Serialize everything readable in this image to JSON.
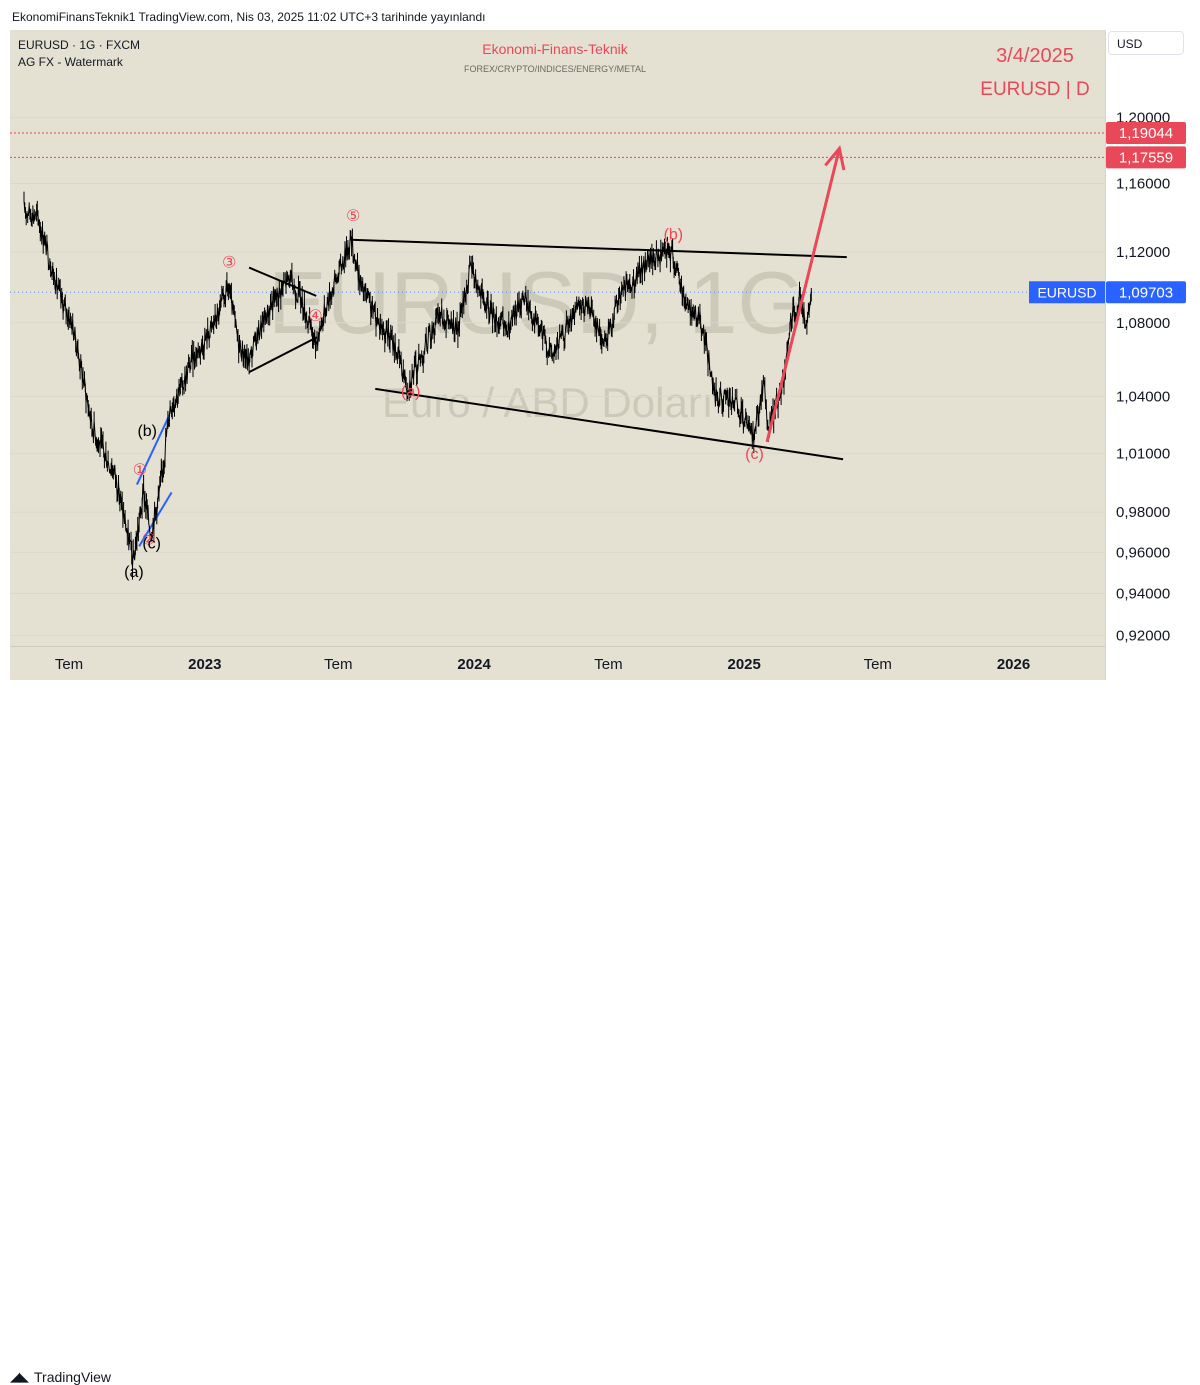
{
  "header": {
    "caption": "EkonomiFinansTeknik1 TradingView.com, Nis 03, 2025 11:02 UTC+3 tarihinde yayınlandı"
  },
  "symbol": {
    "line1": "EURUSD · 1G · FXCM",
    "line2": "AG FX - Watermark"
  },
  "brand": {
    "title": "Ekonomi-Finans-Teknik",
    "subtitle": "FOREX/CRYPTO/INDICES/ENERGY/METAL"
  },
  "annotation": {
    "date": "3/4/2025",
    "pair": "EURUSD | D"
  },
  "watermark": {
    "main": "EURUSD, 1G",
    "sub": "Euro / ABD Doları"
  },
  "currency_button": "USD",
  "footer": {
    "brand": "TradingView"
  },
  "colors": {
    "background": "#e4e1d3",
    "accent_red": "#e84857",
    "price_tag": "#2962ff",
    "blue_lines": "#2962ff"
  },
  "chart_data": {
    "type": "line",
    "series": [
      {
        "name": "EURUSD",
        "points": [
          [
            "2022-05-01",
            1.145
          ],
          [
            "2022-05-20",
            1.14
          ],
          [
            "2022-06-05",
            1.115
          ],
          [
            "2022-06-20",
            1.093
          ],
          [
            "2022-07-05",
            1.08
          ],
          [
            "2022-07-15",
            1.06
          ],
          [
            "2022-08-01",
            1.025
          ],
          [
            "2022-08-15",
            1.012
          ],
          [
            "2022-09-01",
            1.0
          ],
          [
            "2022-09-15",
            0.975
          ],
          [
            "2022-09-26",
            0.955
          ],
          [
            "2022-10-10",
            0.99
          ],
          [
            "2022-10-20",
            0.97
          ],
          [
            "2022-11-01",
            0.99
          ],
          [
            "2022-11-15",
            1.035
          ],
          [
            "2022-12-01",
            1.045
          ],
          [
            "2022-12-15",
            1.06
          ],
          [
            "2023-01-01",
            1.07
          ],
          [
            "2023-01-20",
            1.085
          ],
          [
            "2023-02-02",
            1.1
          ],
          [
            "2023-02-15",
            1.07
          ],
          [
            "2023-03-01",
            1.058
          ],
          [
            "2023-03-15",
            1.075
          ],
          [
            "2023-04-01",
            1.09
          ],
          [
            "2023-04-25",
            1.105
          ],
          [
            "2023-05-10",
            1.095
          ],
          [
            "2023-05-31",
            1.068
          ],
          [
            "2023-06-15",
            1.09
          ],
          [
            "2023-07-18",
            1.127
          ],
          [
            "2023-08-01",
            1.1
          ],
          [
            "2023-08-25",
            1.08
          ],
          [
            "2023-09-15",
            1.068
          ],
          [
            "2023-10-03",
            1.046
          ],
          [
            "2023-10-20",
            1.06
          ],
          [
            "2023-11-15",
            1.085
          ],
          [
            "2023-12-10",
            1.075
          ],
          [
            "2023-12-28",
            1.112
          ],
          [
            "2024-01-15",
            1.09
          ],
          [
            "2024-02-15",
            1.075
          ],
          [
            "2024-03-08",
            1.095
          ],
          [
            "2024-04-16",
            1.062
          ],
          [
            "2024-05-15",
            1.085
          ],
          [
            "2024-06-05",
            1.09
          ],
          [
            "2024-06-26",
            1.068
          ],
          [
            "2024-07-17",
            1.095
          ],
          [
            "2024-08-24",
            1.115
          ],
          [
            "2024-09-25",
            1.12
          ],
          [
            "2024-10-15",
            1.09
          ],
          [
            "2024-11-05",
            1.08
          ],
          [
            "2024-11-22",
            1.04
          ],
          [
            "2024-12-20",
            1.035
          ],
          [
            "2025-01-13",
            1.018
          ],
          [
            "2025-01-27",
            1.047
          ],
          [
            "2025-02-03",
            1.023
          ],
          [
            "2025-02-25",
            1.05
          ],
          [
            "2025-03-05",
            1.08
          ],
          [
            "2025-03-18",
            1.094
          ],
          [
            "2025-03-27",
            1.077
          ],
          [
            "2025-04-03",
            1.097
          ]
        ]
      }
    ],
    "x_ticks": [
      "Tem",
      "2023",
      "Tem",
      "2024",
      "Tem",
      "2025",
      "Tem",
      "2026"
    ],
    "y_ticks": [
      "1,20000",
      "1,16000",
      "1,12000",
      "1,08000",
      "1,04000",
      "1,01000",
      "0,98000",
      "0,96000",
      "0,94000",
      "0,92000"
    ],
    "y_scale": "log",
    "ylim": [
      0.915,
      1.255
    ],
    "xlim": [
      "2022-04-12",
      "2026-05-05"
    ],
    "last_price": {
      "label": "EURUSD",
      "value": "1,09703",
      "y": 1.09703
    },
    "levels": [
      {
        "value": "1,19044",
        "y": 1.19044
      },
      {
        "value": "1,17559",
        "y": 1.17559
      }
    ],
    "trend_lines": [
      {
        "name": "upper-channel",
        "from": [
          "2023-07-18",
          1.127
        ],
        "to": [
          "2025-05-20",
          1.117
        ]
      },
      {
        "name": "lower-channel",
        "from": [
          "2023-08-20",
          1.044
        ],
        "to": [
          "2025-05-15",
          1.007
        ]
      },
      {
        "name": "triangle-top",
        "from": [
          "2023-03-02",
          1.111
        ],
        "to": [
          "2023-06-01",
          1.095
        ]
      },
      {
        "name": "triangle-bottom",
        "from": [
          "2023-03-02",
          1.053
        ],
        "to": [
          "2023-06-02",
          1.072
        ]
      }
    ],
    "blue_lines": [
      {
        "name": "channel-a",
        "from": [
          "2022-10-01",
          0.994
        ],
        "to": [
          "2022-11-14",
          1.03
        ]
      },
      {
        "name": "channel-b",
        "from": [
          "2022-10-04",
          0.963
        ],
        "to": [
          "2022-11-17",
          0.99
        ]
      }
    ],
    "arrow": {
      "from": [
        "2025-02-01",
        1.016
      ],
      "to": [
        "2025-05-10",
        1.181
      ]
    },
    "wave_labels": [
      {
        "text": "①",
        "x": "2022-10-05",
        "y": 0.999,
        "color": "red"
      },
      {
        "text": "②",
        "x": "2022-10-17",
        "y": 0.964,
        "color": "red"
      },
      {
        "text": "③",
        "x": "2023-02-03",
        "y": 1.111,
        "color": "red"
      },
      {
        "text": "④",
        "x": "2023-05-31",
        "y": 1.081,
        "color": "red"
      },
      {
        "text": "⑤",
        "x": "2023-07-21",
        "y": 1.138,
        "color": "red"
      },
      {
        "text": "(a)",
        "x": "2022-09-27",
        "y": 0.948,
        "color": "black"
      },
      {
        "text": "(b)",
        "x": "2022-10-15",
        "y": 1.019,
        "color": "black"
      },
      {
        "text": "(c)",
        "x": "2022-10-21",
        "y": 0.962,
        "color": "black"
      },
      {
        "text": "(a)",
        "x": "2023-10-07",
        "y": 1.04,
        "color": "red"
      },
      {
        "text": "(b)",
        "x": "2024-09-27",
        "y": 1.127,
        "color": "red"
      },
      {
        "text": "(c)",
        "x": "2025-01-15",
        "y": 1.007,
        "color": "red"
      }
    ]
  }
}
